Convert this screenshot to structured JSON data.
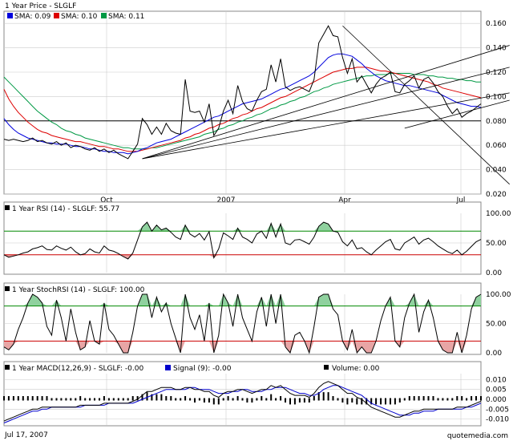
{
  "footer": {
    "date": "Jul 17, 2007",
    "brand": "quotemedia.com"
  },
  "colors": {
    "sma1": "#0000dd",
    "sma2": "#dd0000",
    "sma3": "#009944",
    "price": "#000000",
    "rsi_line": "#000000",
    "upper": "#008800",
    "lower": "#cc0000",
    "fill_up": "#8fd19e",
    "fill_down": "#e8a5a5",
    "macd": "#000000",
    "signal": "#0000cc",
    "grid": "#cccccc"
  },
  "chart_data": [
    {
      "type": "line",
      "id": "price",
      "title": "1 Year Price - SLGLF",
      "x_ticks": [
        "Oct",
        "2007",
        "Apr",
        "Jul"
      ],
      "y_ticks": [
        "0.160",
        "0.140",
        "0.120",
        "0.100",
        "0.080",
        "0.060",
        "0.040",
        "0.020"
      ],
      "ylim": [
        0.02,
        0.17
      ],
      "legend": [
        {
          "key": "sma1",
          "label": "SMA: 0.09"
        },
        {
          "key": "sma2",
          "label": "SMA: 0.10"
        },
        {
          "key": "sma3",
          "label": "SMA: 0.11"
        }
      ],
      "price": [
        0.065,
        0.064,
        0.065,
        0.064,
        0.063,
        0.064,
        0.066,
        0.063,
        0.064,
        0.062,
        0.061,
        0.063,
        0.06,
        0.062,
        0.058,
        0.06,
        0.059,
        0.057,
        0.056,
        0.058,
        0.055,
        0.057,
        0.054,
        0.056,
        0.053,
        0.051,
        0.049,
        0.055,
        0.061,
        0.082,
        0.077,
        0.069,
        0.075,
        0.069,
        0.078,
        0.072,
        0.07,
        0.069,
        0.114,
        0.088,
        0.087,
        0.088,
        0.079,
        0.094,
        0.068,
        0.074,
        0.088,
        0.097,
        0.086,
        0.109,
        0.096,
        0.09,
        0.088,
        0.097,
        0.104,
        0.106,
        0.126,
        0.112,
        0.131,
        0.108,
        0.105,
        0.107,
        0.108,
        0.106,
        0.104,
        0.114,
        0.144,
        0.151,
        0.158,
        0.15,
        0.149,
        0.132,
        0.119,
        0.131,
        0.112,
        0.117,
        0.11,
        0.103,
        0.11,
        0.115,
        0.117,
        0.12,
        0.104,
        0.103,
        0.11,
        0.113,
        0.117,
        0.107,
        0.114,
        0.116,
        0.111,
        0.104,
        0.1,
        0.092,
        0.086,
        0.09,
        0.083,
        0.086,
        0.088,
        0.091,
        0.094
      ],
      "sma1": [
        0.082,
        0.077,
        0.073,
        0.07,
        0.068,
        0.066,
        0.065,
        0.064,
        0.063,
        0.062,
        0.062,
        0.061,
        0.061,
        0.061,
        0.06,
        0.059,
        0.059,
        0.058,
        0.057,
        0.057,
        0.056,
        0.055,
        0.055,
        0.054,
        0.054,
        0.054,
        0.053,
        0.054,
        0.055,
        0.057,
        0.058,
        0.06,
        0.062,
        0.063,
        0.064,
        0.065,
        0.067,
        0.069,
        0.071,
        0.073,
        0.075,
        0.077,
        0.079,
        0.081,
        0.083,
        0.084,
        0.086,
        0.088,
        0.09,
        0.092,
        0.094,
        0.095,
        0.096,
        0.097,
        0.098,
        0.1,
        0.102,
        0.104,
        0.106,
        0.107,
        0.109,
        0.111,
        0.113,
        0.115,
        0.117,
        0.12,
        0.124,
        0.128,
        0.132,
        0.134,
        0.135,
        0.135,
        0.134,
        0.133,
        0.13,
        0.127,
        0.123,
        0.12,
        0.117,
        0.115,
        0.113,
        0.112,
        0.111,
        0.11,
        0.109,
        0.109,
        0.108,
        0.107,
        0.106,
        0.105,
        0.104,
        0.103,
        0.101,
        0.099,
        0.097,
        0.095,
        0.094,
        0.093,
        0.092,
        0.092,
        0.091
      ],
      "sma2": [
        0.106,
        0.098,
        0.092,
        0.087,
        0.083,
        0.079,
        0.076,
        0.073,
        0.071,
        0.07,
        0.068,
        0.067,
        0.066,
        0.065,
        0.064,
        0.063,
        0.063,
        0.062,
        0.061,
        0.06,
        0.059,
        0.059,
        0.058,
        0.057,
        0.057,
        0.056,
        0.055,
        0.055,
        0.055,
        0.056,
        0.057,
        0.058,
        0.059,
        0.06,
        0.061,
        0.062,
        0.063,
        0.064,
        0.066,
        0.067,
        0.069,
        0.07,
        0.072,
        0.074,
        0.075,
        0.077,
        0.078,
        0.08,
        0.082,
        0.083,
        0.085,
        0.086,
        0.088,
        0.09,
        0.091,
        0.093,
        0.095,
        0.097,
        0.099,
        0.1,
        0.102,
        0.104,
        0.106,
        0.108,
        0.11,
        0.112,
        0.114,
        0.116,
        0.118,
        0.12,
        0.121,
        0.122,
        0.123,
        0.123,
        0.124,
        0.124,
        0.124,
        0.123,
        0.122,
        0.121,
        0.121,
        0.12,
        0.119,
        0.118,
        0.117,
        0.116,
        0.115,
        0.114,
        0.113,
        0.112,
        0.11,
        0.109,
        0.107,
        0.106,
        0.105,
        0.104,
        0.103,
        0.102,
        0.101,
        0.1,
        0.099
      ],
      "sma3": [
        0.116,
        0.112,
        0.108,
        0.104,
        0.1,
        0.096,
        0.092,
        0.088,
        0.085,
        0.082,
        0.079,
        0.077,
        0.074,
        0.072,
        0.071,
        0.069,
        0.068,
        0.066,
        0.065,
        0.064,
        0.063,
        0.062,
        0.061,
        0.06,
        0.059,
        0.058,
        0.058,
        0.057,
        0.057,
        0.057,
        0.057,
        0.058,
        0.058,
        0.059,
        0.06,
        0.061,
        0.062,
        0.063,
        0.064,
        0.065,
        0.066,
        0.067,
        0.069,
        0.07,
        0.071,
        0.073,
        0.074,
        0.076,
        0.077,
        0.079,
        0.08,
        0.082,
        0.083,
        0.085,
        0.086,
        0.088,
        0.09,
        0.091,
        0.093,
        0.094,
        0.096,
        0.097,
        0.099,
        0.1,
        0.102,
        0.104,
        0.105,
        0.107,
        0.108,
        0.11,
        0.111,
        0.112,
        0.113,
        0.114,
        0.115,
        0.116,
        0.117,
        0.117,
        0.118,
        0.118,
        0.118,
        0.119,
        0.119,
        0.119,
        0.119,
        0.119,
        0.118,
        0.118,
        0.118,
        0.117,
        0.117,
        0.116,
        0.116,
        0.115,
        0.115,
        0.114,
        0.114,
        0.113,
        0.113,
        0.112,
        0.112
      ],
      "support_y": 0.08,
      "trendlines": [
        {
          "from": [
            0.29,
            0.049
          ],
          "to": [
            1.06,
            0.142
          ]
        },
        {
          "from": [
            0.29,
            0.049
          ],
          "to": [
            1.06,
            0.124
          ]
        },
        {
          "from": [
            0.29,
            0.049
          ],
          "to": [
            1.06,
            0.103
          ]
        },
        {
          "from": [
            0.71,
            0.158
          ],
          "to": [
            1.06,
            0.028
          ]
        },
        {
          "from": [
            0.84,
            0.074
          ],
          "to": [
            1.06,
            0.097
          ]
        }
      ]
    },
    {
      "type": "line",
      "id": "rsi",
      "title": "1 Year  RSI (14) - SLGLF: 55.77",
      "y_ticks": [
        "100.00",
        "50.00",
        "0.00"
      ],
      "ylim": [
        0,
        100
      ],
      "upper": 70,
      "lower": 30,
      "values": [
        30,
        26,
        28,
        30,
        33,
        35,
        40,
        42,
        45,
        39,
        38,
        45,
        41,
        38,
        43,
        35,
        30,
        32,
        40,
        35,
        33,
        45,
        38,
        36,
        32,
        27,
        23,
        33,
        55,
        77,
        85,
        70,
        80,
        72,
        75,
        68,
        60,
        56,
        80,
        65,
        60,
        66,
        55,
        69,
        25,
        40,
        67,
        62,
        56,
        75,
        60,
        56,
        50,
        65,
        70,
        58,
        83,
        60,
        82,
        50,
        47,
        55,
        56,
        52,
        48,
        60,
        78,
        85,
        82,
        70,
        68,
        52,
        45,
        55,
        40,
        42,
        35,
        30,
        38,
        45,
        52,
        56,
        40,
        38,
        50,
        55,
        60,
        48,
        55,
        58,
        52,
        45,
        40,
        35,
        32,
        38,
        30,
        36,
        44,
        52,
        56
      ]
    },
    {
      "type": "line",
      "id": "stochrsi",
      "title": "1 Year StochRSI (14) - SLGLF: 100.00",
      "y_ticks": [
        "100.00",
        "50.00",
        "0.00"
      ],
      "ylim": [
        0,
        100
      ],
      "upper": 80,
      "lower": 20,
      "values": [
        10,
        5,
        15,
        40,
        60,
        85,
        100,
        95,
        85,
        45,
        30,
        90,
        60,
        20,
        75,
        35,
        5,
        10,
        55,
        20,
        15,
        85,
        40,
        30,
        15,
        0,
        0,
        35,
        80,
        100,
        100,
        60,
        95,
        70,
        85,
        50,
        25,
        0,
        100,
        60,
        40,
        65,
        20,
        85,
        0,
        30,
        100,
        85,
        45,
        100,
        60,
        40,
        20,
        70,
        95,
        45,
        100,
        50,
        100,
        10,
        0,
        30,
        35,
        20,
        0,
        45,
        95,
        100,
        100,
        75,
        65,
        20,
        5,
        40,
        0,
        10,
        0,
        0,
        20,
        55,
        80,
        95,
        20,
        10,
        60,
        85,
        100,
        35,
        70,
        90,
        60,
        20,
        5,
        0,
        0,
        35,
        0,
        30,
        75,
        95,
        100
      ]
    },
    {
      "type": "bar",
      "id": "macd",
      "title": "1 Year MACD(12,26,9) - SLGLF: -0.00",
      "y_ticks": [
        "0.010",
        "0.005",
        "0.000",
        "-0.005",
        "-0.010"
      ],
      "ylim": [
        -0.013,
        0.013
      ],
      "legend": [
        {
          "key": "signal",
          "label": "Signal (9): -0.00"
        },
        {
          "key": "volume",
          "label": "Volume: 0.00"
        }
      ],
      "macd": [
        -0.011,
        -0.01,
        -0.009,
        -0.008,
        -0.007,
        -0.006,
        -0.005,
        -0.005,
        -0.004,
        -0.004,
        -0.004,
        -0.004,
        -0.004,
        -0.004,
        -0.004,
        -0.004,
        -0.003,
        -0.003,
        -0.003,
        -0.003,
        -0.003,
        -0.002,
        -0.002,
        -0.002,
        -0.002,
        -0.002,
        -0.002,
        -0.001,
        0.0,
        0.002,
        0.004,
        0.004,
        0.005,
        0.006,
        0.006,
        0.006,
        0.005,
        0.005,
        0.006,
        0.006,
        0.005,
        0.005,
        0.004,
        0.004,
        0.002,
        0.001,
        0.003,
        0.004,
        0.004,
        0.005,
        0.005,
        0.004,
        0.003,
        0.004,
        0.005,
        0.005,
        0.007,
        0.006,
        0.007,
        0.005,
        0.003,
        0.002,
        0.002,
        0.002,
        0.001,
        0.003,
        0.006,
        0.008,
        0.009,
        0.008,
        0.007,
        0.005,
        0.003,
        0.003,
        0.001,
        0.0,
        -0.002,
        -0.004,
        -0.005,
        -0.006,
        -0.007,
        -0.008,
        -0.009,
        -0.009,
        -0.008,
        -0.007,
        -0.006,
        -0.006,
        -0.005,
        -0.005,
        -0.005,
        -0.005,
        -0.005,
        -0.005,
        -0.005,
        -0.004,
        -0.004,
        -0.004,
        -0.003,
        -0.002,
        -0.001
      ],
      "signal": [
        -0.012,
        -0.011,
        -0.01,
        -0.009,
        -0.008,
        -0.007,
        -0.006,
        -0.006,
        -0.005,
        -0.005,
        -0.004,
        -0.004,
        -0.004,
        -0.004,
        -0.004,
        -0.004,
        -0.004,
        -0.003,
        -0.003,
        -0.003,
        -0.003,
        -0.003,
        -0.002,
        -0.002,
        -0.002,
        -0.002,
        -0.002,
        -0.002,
        -0.001,
        0.0,
        0.001,
        0.002,
        0.003,
        0.004,
        0.005,
        0.005,
        0.005,
        0.005,
        0.005,
        0.006,
        0.006,
        0.005,
        0.005,
        0.005,
        0.004,
        0.003,
        0.003,
        0.003,
        0.004,
        0.004,
        0.005,
        0.005,
        0.004,
        0.004,
        0.004,
        0.005,
        0.005,
        0.006,
        0.006,
        0.006,
        0.005,
        0.004,
        0.003,
        0.003,
        0.002,
        0.002,
        0.003,
        0.005,
        0.006,
        0.007,
        0.007,
        0.006,
        0.005,
        0.004,
        0.003,
        0.002,
        0.0,
        -0.002,
        -0.003,
        -0.004,
        -0.005,
        -0.006,
        -0.007,
        -0.008,
        -0.008,
        -0.008,
        -0.007,
        -0.007,
        -0.006,
        -0.006,
        -0.006,
        -0.005,
        -0.005,
        -0.005,
        -0.005,
        -0.005,
        -0.005,
        -0.004,
        -0.004,
        -0.003,
        -0.002
      ]
    }
  ]
}
